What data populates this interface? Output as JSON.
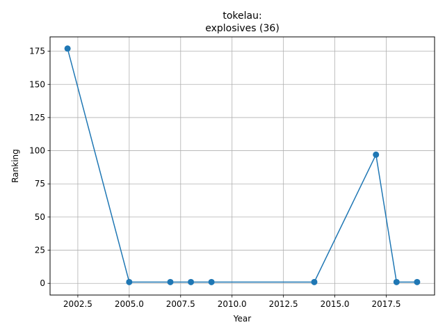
{
  "chart_data": {
    "type": "line",
    "title_line1": "tokelau:",
    "title_line2": "explosives (36)",
    "xlabel": "Year",
    "ylabel": "Ranking",
    "xlim": [
      2001.15,
      2019.85
    ],
    "ylim": [
      -8.8,
      185.8
    ],
    "xticks": [
      2002.5,
      2005.0,
      2007.5,
      2010.0,
      2012.5,
      2015.0,
      2017.5
    ],
    "xtick_labels": [
      "2002.5",
      "2005.0",
      "2007.5",
      "2010.0",
      "2012.5",
      "2015.0",
      "2017.5"
    ],
    "yticks": [
      0,
      25,
      50,
      75,
      100,
      125,
      150,
      175
    ],
    "ytick_labels": [
      "0",
      "25",
      "50",
      "75",
      "100",
      "125",
      "150",
      "175"
    ],
    "grid": true,
    "series": [
      {
        "color": "#1f77b4",
        "marker": "circle",
        "x": [
          2002,
          2005,
          2007,
          2008,
          2009,
          2014,
          2017,
          2018,
          2019
        ],
        "y": [
          177,
          1,
          1,
          1,
          1,
          1,
          97,
          1,
          1
        ]
      }
    ]
  }
}
